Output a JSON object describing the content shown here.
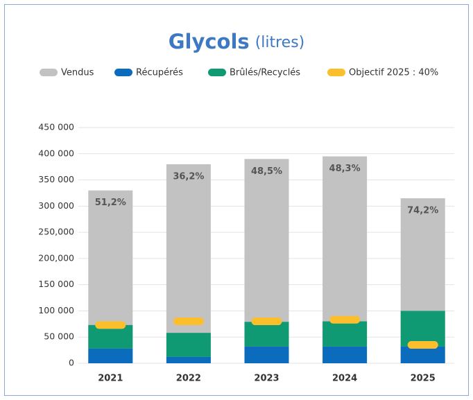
{
  "chart_data": {
    "type": "bar",
    "title": "Glycols",
    "subtitle": "(litres)",
    "categories": [
      "2021",
      "2022",
      "2023",
      "2024",
      "2025"
    ],
    "series": [
      {
        "name": "Vendus",
        "color": "#c2c2c2",
        "mark": "total",
        "values": [
          330000,
          380000,
          390000,
          395000,
          315000
        ]
      },
      {
        "name": "Récupérés",
        "color": "#0b6cbd",
        "mark": "stack",
        "values": [
          28000,
          12000,
          32000,
          32000,
          32000
        ]
      },
      {
        "name": "Brûlés/Recyclés",
        "color": "#0f9a74",
        "mark": "stack",
        "values": [
          45000,
          46000,
          47000,
          48000,
          68000
        ]
      },
      {
        "name": "Objectif 2025 : 40%",
        "color": "#fbbf2d",
        "mark": "marker",
        "values": [
          73000,
          80000,
          80000,
          83000,
          35000
        ]
      }
    ],
    "annotations": [
      "51,2%",
      "36,2%",
      "48,5%",
      "48,3%",
      "74,2%"
    ],
    "ylim": [
      0,
      450000
    ],
    "yticks": [
      0,
      {
        "value": 50000,
        "label": "50 000"
      },
      {
        "value": 100000,
        "label": "100 000"
      },
      {
        "value": 150000,
        "label": "150 000"
      },
      {
        "value": 200000,
        "label": "200,000"
      },
      {
        "value": 250000,
        "label": "250,000"
      },
      {
        "value": 300000,
        "label": "300 000"
      },
      {
        "value": 350000,
        "label": "350 000"
      },
      {
        "value": 400000,
        "label": "400 000"
      },
      {
        "value": 450000,
        "label": "450 000"
      }
    ],
    "grid": true
  }
}
